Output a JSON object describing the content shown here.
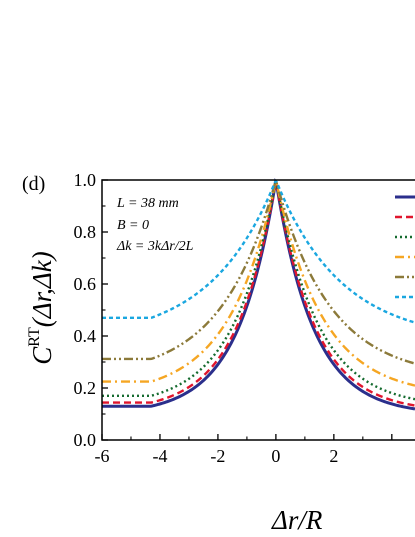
{
  "panel_label": "(d)",
  "annotations": [
    "L = 38 mm",
    "B = 0",
    "Δk = 3kΔr/2L"
  ],
  "chart_data": {
    "type": "line",
    "title": "",
    "xlabel": "Δr/R",
    "ylabel": "C^RT(Δr,Δk)",
    "xlim": [
      -6,
      4.8
    ],
    "ylim": [
      0,
      1
    ],
    "xticks": [
      "-6",
      "-4",
      "-2",
      "0",
      "2"
    ],
    "yticks": [
      "0.0",
      "0.2",
      "0.4",
      "0.6",
      "0.8",
      "1.0"
    ],
    "grid": false,
    "legend": "top-right (cropped)",
    "series": [
      {
        "color": "#2b2f8c",
        "dash": "solid",
        "base": 0.097,
        "width": 1.3
      },
      {
        "color": "#e0152d",
        "dash": "dashed",
        "base": 0.107,
        "width": 1.35
      },
      {
        "color": "#156b2f",
        "dash": "dotted",
        "base": 0.125,
        "width": 1.45
      },
      {
        "color": "#f5a623",
        "dash": "dashdot",
        "base": 0.168,
        "width": 1.6
      },
      {
        "color": "#8c7a3a",
        "dash": "dashdotdot",
        "base": 0.237,
        "width": 1.85
      },
      {
        "color": "#1aa7e0",
        "dash": "shortdash",
        "base": 0.378,
        "width": 2.25
      }
    ]
  }
}
